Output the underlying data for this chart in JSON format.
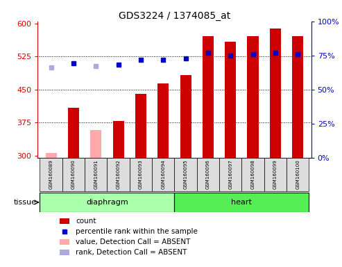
{
  "title": "GDS3224 / 1374085_at",
  "samples": [
    "GSM160089",
    "GSM160090",
    "GSM160091",
    "GSM160092",
    "GSM160093",
    "GSM160094",
    "GSM160095",
    "GSM160096",
    "GSM160097",
    "GSM160098",
    "GSM160099",
    "GSM160100"
  ],
  "count_values": [
    305,
    408,
    358,
    378,
    440,
    463,
    483,
    572,
    558,
    572,
    588,
    572
  ],
  "count_absent": [
    true,
    false,
    true,
    false,
    false,
    false,
    false,
    false,
    false,
    false,
    false,
    false
  ],
  "rank_values": [
    66,
    69,
    67,
    68,
    72,
    72,
    73,
    77,
    75,
    76,
    77,
    76
  ],
  "rank_absent": [
    true,
    false,
    true,
    false,
    false,
    false,
    false,
    false,
    false,
    false,
    false,
    false
  ],
  "ylim_left": [
    295,
    605
  ],
  "ylim_right": [
    0,
    100
  ],
  "yticks_left": [
    300,
    375,
    450,
    525,
    600
  ],
  "yticks_right": [
    0,
    25,
    50,
    75,
    100
  ],
  "bar_color_normal": "#cc0000",
  "bar_color_absent": "#ffaaaa",
  "dot_color_normal": "#0000cc",
  "dot_color_absent": "#aaaadd",
  "tissue_groups": [
    {
      "label": "diaphragm",
      "start": 0,
      "end": 5
    },
    {
      "label": "heart",
      "start": 6,
      "end": 11
    }
  ],
  "tissue_bg_diaphragm": "#aaffaa",
  "tissue_bg_heart": "#55ee55",
  "left_axis_color": "#cc0000",
  "right_axis_color": "#0000cc",
  "bar_width": 0.5,
  "figsize": [
    4.93,
    3.84
  ],
  "dpi": 100
}
